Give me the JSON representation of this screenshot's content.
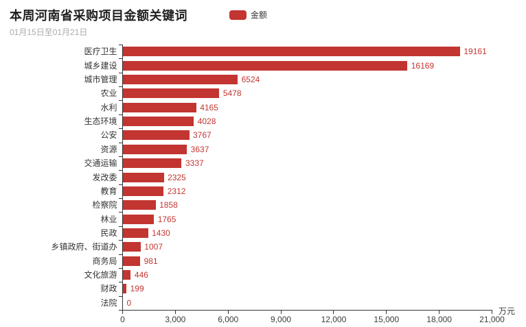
{
  "header": {
    "title": "本周河南省采购项目金额关键词",
    "subtitle": "01月15日至01月21日"
  },
  "legend": {
    "items": [
      {
        "label": "金额",
        "color": "#c23531"
      }
    ]
  },
  "chart_data": {
    "type": "bar",
    "orientation": "horizontal",
    "title": "本周河南省采购项目金额关键词",
    "subtitle": "01月15日至01月21日",
    "series_name": "金额",
    "categories": [
      "医疗卫生",
      "城乡建设",
      "城市管理",
      "农业",
      "水利",
      "生态环境",
      "公安",
      "资源",
      "交通运输",
      "发改委",
      "教育",
      "检察院",
      "林业",
      "民政",
      "乡镇政府、街道办",
      "商务局",
      "文化旅游",
      "财政",
      "法院"
    ],
    "values": [
      19161,
      16169,
      6524,
      5478,
      4165,
      4028,
      3767,
      3637,
      3337,
      2325,
      2312,
      1858,
      1765,
      1430,
      1007,
      981,
      446,
      199,
      0
    ],
    "xlabel_unit": "万元",
    "xlim": [
      0,
      21000
    ],
    "x_ticks": [
      0,
      3000,
      6000,
      9000,
      12000,
      15000,
      18000,
      21000
    ],
    "x_tick_labels": [
      "0",
      "3,000",
      "6,000",
      "9,000",
      "12,000",
      "15,000",
      "18,000",
      "21,000"
    ],
    "bar_color": "#c23531",
    "value_label_color": "#c23531",
    "grid": false,
    "legend_position": "top",
    "value_labels_shown": true
  }
}
